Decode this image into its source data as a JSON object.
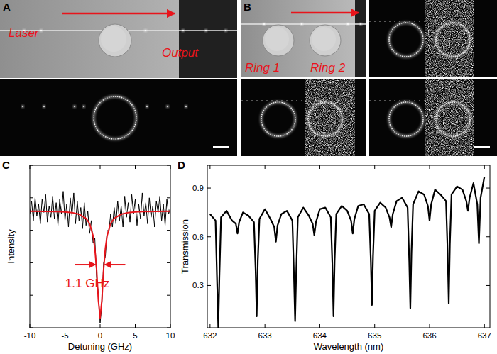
{
  "panel_labels": [
    "A",
    "B",
    "C",
    "D"
  ],
  "panel_a_texts": [
    "Laser",
    "Output"
  ],
  "panel_b_texts": [
    "Ring 1",
    "Ring 2"
  ],
  "chart_data": [
    {
      "type": "line",
      "xlabel": "Detuning (GHz)",
      "ylabel": "Intensity",
      "xlim": [
        -10,
        10
      ],
      "ylim": [
        0,
        1
      ],
      "xticks": [
        -10,
        -5,
        0,
        5,
        10
      ],
      "yticks": [
        0,
        0.2,
        0.4,
        0.6,
        0.8,
        1
      ],
      "tick_labels": "x",
      "x": [
        -10,
        -9.75,
        -9.5,
        -9.25,
        -9,
        -8.75,
        -8.5,
        -8.25,
        -8,
        -7.75,
        -7.5,
        -7.25,
        -7,
        -6.75,
        -6.5,
        -6.25,
        -6,
        -5.75,
        -5.5,
        -5.25,
        -5,
        -4.75,
        -4.5,
        -4.25,
        -4,
        -3.75,
        -3.5,
        -3.25,
        -3,
        -2.75,
        -2.5,
        -2.25,
        -2,
        -1.75,
        -1.5,
        -1.25,
        -1,
        -0.75,
        -0.5,
        -0.25,
        0,
        0.25,
        0.5,
        0.75,
        1,
        1.25,
        1.5,
        1.75,
        2,
        2.25,
        2.5,
        2.75,
        3,
        3.25,
        3.5,
        3.75,
        4,
        4.25,
        4.5,
        4.75,
        5,
        5.25,
        5.5,
        5.75,
        6,
        6.25,
        6.5,
        6.75,
        7,
        7.25,
        7.5,
        7.75,
        8,
        8.25,
        8.5,
        8.75,
        9,
        9.25,
        9.5,
        9.75,
        10
      ],
      "series": [
        {
          "color": "#000000",
          "values": [
            0.7,
            0.78,
            0.66,
            0.8,
            0.69,
            0.76,
            0.64,
            0.79,
            0.71,
            0.82,
            0.65,
            0.75,
            0.68,
            0.81,
            0.67,
            0.77,
            0.63,
            0.79,
            0.7,
            0.84,
            0.66,
            0.76,
            0.62,
            0.8,
            0.69,
            0.83,
            0.64,
            0.78,
            0.66,
            0.74,
            0.61,
            0.77,
            0.63,
            0.72,
            0.58,
            0.66,
            0.52,
            0.55,
            0.31,
            0.21,
            0.03,
            0.14,
            0.4,
            0.44,
            0.6,
            0.59,
            0.7,
            0.62,
            0.74,
            0.64,
            0.78,
            0.66,
            0.75,
            0.62,
            0.81,
            0.68,
            0.77,
            0.65,
            0.82,
            0.7,
            0.79,
            0.63,
            0.76,
            0.67,
            0.83,
            0.69,
            0.77,
            0.64,
            0.8,
            0.68,
            0.75,
            0.62,
            0.78,
            0.71,
            0.81,
            0.66,
            0.76,
            0.63,
            0.79,
            0.7,
            0.74
          ]
        },
        {
          "color": "#e8141b",
          "x": [
            -10,
            -8,
            -6,
            -5,
            -4,
            -3,
            -2,
            -1.5,
            -1,
            -0.75,
            -0.5,
            -0.25,
            0,
            0.25,
            0.5,
            0.75,
            1,
            1.5,
            2,
            3,
            4,
            5,
            6,
            8,
            10
          ],
          "values": [
            0.717,
            0.716,
            0.715,
            0.713,
            0.709,
            0.699,
            0.673,
            0.642,
            0.567,
            0.49,
            0.36,
            0.17,
            0.06,
            0.17,
            0.36,
            0.49,
            0.567,
            0.642,
            0.673,
            0.699,
            0.709,
            0.713,
            0.715,
            0.716,
            0.717
          ]
        }
      ],
      "annotations": [
        {
          "text": "1.1 GHz",
          "color": "#e8141b"
        }
      ]
    },
    {
      "type": "line",
      "xlabel": "Wavelength (nm)",
      "ylabel": "Transmission",
      "xlim": [
        631.95,
        637.1
      ],
      "ylim": [
        0.04,
        1.04
      ],
      "xticks": [
        632,
        633,
        634,
        635,
        636,
        637
      ],
      "yticks": [
        0.3,
        0.6,
        0.9
      ],
      "x": [
        632.0,
        632.1,
        632.13,
        632.15,
        632.17,
        632.2,
        632.3,
        632.4,
        632.47,
        632.5,
        632.53,
        632.6,
        632.7,
        632.8,
        632.83,
        632.85,
        632.87,
        632.9,
        633.0,
        633.1,
        633.17,
        633.2,
        633.23,
        633.3,
        633.4,
        633.5,
        633.53,
        633.55,
        633.57,
        633.6,
        633.7,
        633.8,
        633.87,
        633.9,
        633.93,
        634.0,
        634.1,
        634.2,
        634.23,
        634.25,
        634.27,
        634.3,
        634.4,
        634.5,
        634.57,
        634.6,
        634.63,
        634.7,
        634.8,
        634.9,
        634.93,
        634.95,
        634.97,
        635.0,
        635.1,
        635.2,
        635.27,
        635.3,
        635.33,
        635.4,
        635.5,
        635.6,
        635.63,
        635.65,
        635.67,
        635.7,
        635.8,
        635.9,
        635.97,
        636.0,
        636.03,
        636.1,
        636.2,
        636.3,
        636.33,
        636.35,
        636.37,
        636.4,
        636.5,
        636.6,
        636.67,
        636.7,
        636.73,
        636.8,
        636.87,
        636.9,
        636.93,
        637.0
      ],
      "series": [
        {
          "color": "#000000",
          "values": [
            0.74,
            0.7,
            0.3,
            0.04,
            0.35,
            0.72,
            0.76,
            0.7,
            0.68,
            0.62,
            0.69,
            0.75,
            0.73,
            0.69,
            0.4,
            0.11,
            0.45,
            0.71,
            0.77,
            0.71,
            0.66,
            0.57,
            0.67,
            0.74,
            0.76,
            0.7,
            0.35,
            0.08,
            0.38,
            0.72,
            0.78,
            0.73,
            0.68,
            0.61,
            0.69,
            0.77,
            0.78,
            0.72,
            0.42,
            0.11,
            0.45,
            0.74,
            0.79,
            0.76,
            0.7,
            0.62,
            0.71,
            0.79,
            0.8,
            0.74,
            0.45,
            0.18,
            0.48,
            0.76,
            0.81,
            0.78,
            0.72,
            0.66,
            0.74,
            0.82,
            0.84,
            0.78,
            0.45,
            0.16,
            0.5,
            0.8,
            0.88,
            0.86,
            0.79,
            0.7,
            0.8,
            0.89,
            0.86,
            0.82,
            0.5,
            0.19,
            0.55,
            0.86,
            0.91,
            0.89,
            0.82,
            0.76,
            0.84,
            0.93,
            0.8,
            0.56,
            0.84,
            0.97
          ]
        }
      ]
    }
  ]
}
